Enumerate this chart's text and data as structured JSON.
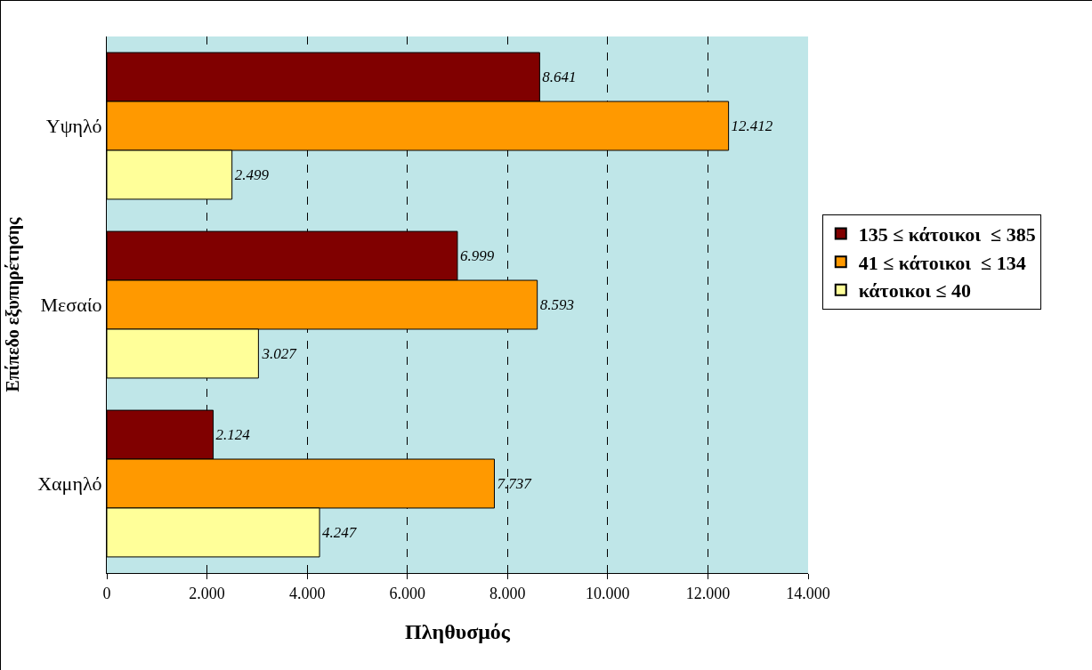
{
  "chart_data": {
    "type": "bar",
    "orientation": "horizontal",
    "xlabel": "Πληθυσμός",
    "ylabel": "Επίπεδο εξυπηρέτησης",
    "categories": [
      "Υψηλό",
      "Μεσαίο",
      "Χαμηλό"
    ],
    "series": [
      {
        "name": "135 ≤ κάτοικοι  ≤ 385",
        "color": "#800000",
        "values": [
          8641,
          6999,
          2124
        ],
        "value_labels": [
          "8.641",
          "6.999",
          "2.124"
        ]
      },
      {
        "name": "41 ≤ κάτοικοι  ≤ 134",
        "color": "#ff9900",
        "values": [
          12412,
          8593,
          7737
        ],
        "value_labels": [
          "12.412",
          "8.593",
          "7.737"
        ]
      },
      {
        "name": "κάτοικοι ≤ 40",
        "color": "#ffff99",
        "values": [
          2499,
          3027,
          4247
        ],
        "value_labels": [
          "2.499",
          "3.027",
          "4.247"
        ]
      }
    ],
    "xlim": [
      0,
      14000
    ],
    "xticks": [
      0,
      {
        "value": 2000,
        "label": "2.000"
      },
      {
        "value": 4000,
        "label": "4.000"
      },
      {
        "value": 6000,
        "label": "6.000"
      },
      {
        "value": 8000,
        "label": "8.000"
      },
      {
        "value": 10000,
        "label": "10.000"
      },
      {
        "value": 12000,
        "label": "12.000"
      },
      {
        "value": 14000,
        "label": "14.000"
      }
    ],
    "grid": "x",
    "line_style": "dashed",
    "legend": "right"
  }
}
